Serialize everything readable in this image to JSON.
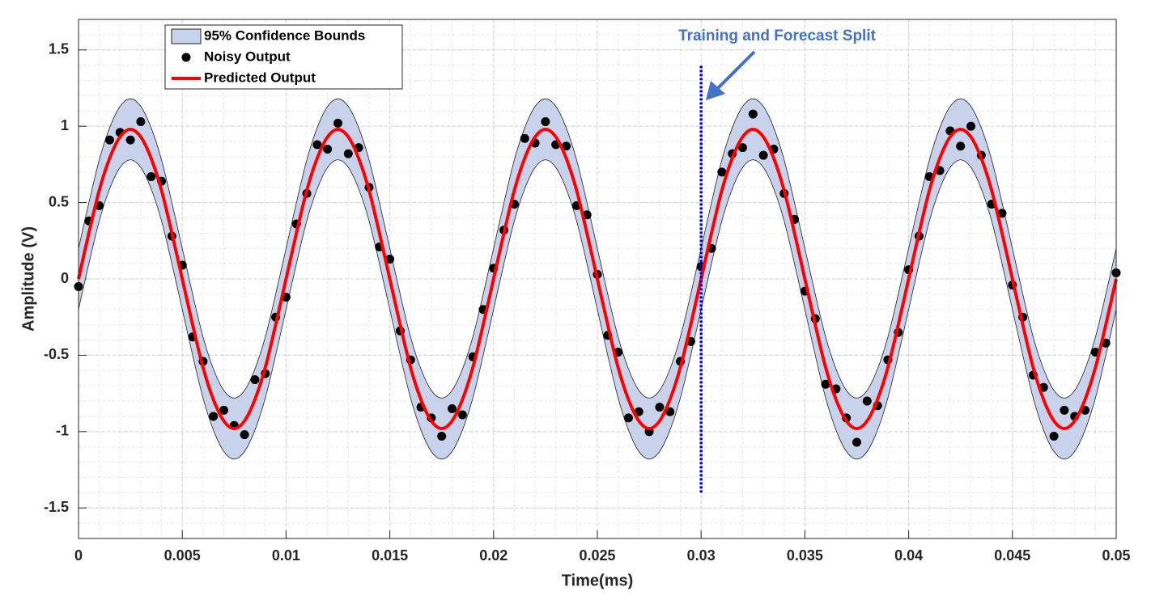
{
  "chart_data": {
    "type": "line",
    "xlabel": "Time(ms)",
    "ylabel": "Amplitude (V)",
    "x": [
      0,
      0.0005,
      0.001,
      0.0015,
      0.002,
      0.0025,
      0.003,
      0.0035,
      0.004,
      0.0045,
      0.005,
      0.0055,
      0.006,
      0.0065,
      0.007,
      0.0075,
      0.008,
      0.0085,
      0.009,
      0.0095,
      0.01,
      0.0105,
      0.011,
      0.0115,
      0.012,
      0.0125,
      0.013,
      0.0135,
      0.014,
      0.0145,
      0.015,
      0.0155,
      0.016,
      0.0165,
      0.017,
      0.0175,
      0.018,
      0.0185,
      0.019,
      0.0195,
      0.02,
      0.0205,
      0.021,
      0.0215,
      0.022,
      0.0225,
      0.023,
      0.0235,
      0.024,
      0.0245,
      0.025,
      0.0255,
      0.026,
      0.0265,
      0.027,
      0.0275,
      0.028,
      0.0285,
      0.029,
      0.0295,
      0.03,
      0.0305,
      0.031,
      0.0315,
      0.032,
      0.0325,
      0.033,
      0.0335,
      0.034,
      0.0345,
      0.035,
      0.0355,
      0.036,
      0.0365,
      0.037,
      0.0375,
      0.038,
      0.0385,
      0.039,
      0.0395,
      0.04,
      0.0405,
      0.041,
      0.0415,
      0.042,
      0.0425,
      0.043,
      0.0435,
      0.044,
      0.0445,
      0.045,
      0.0455,
      0.046,
      0.0465,
      0.047,
      0.0475,
      0.048,
      0.0485,
      0.049,
      0.0495,
      0.05
    ],
    "series": [
      {
        "name": "95% Confidence Bounds",
        "kind": "band",
        "color": "#c8d2ea",
        "upper": [
          0.2,
          0.5,
          0.78,
          0.99,
          1.13,
          1.18,
          1.13,
          0.99,
          0.78,
          0.5,
          0.2,
          -0.1,
          -0.38,
          -0.59,
          -0.73,
          -0.78,
          -0.73,
          -0.59,
          -0.38,
          -0.1,
          0.2,
          0.5,
          0.78,
          0.99,
          1.13,
          1.18,
          1.13,
          0.99,
          0.78,
          0.5,
          0.2,
          -0.1,
          -0.38,
          -0.59,
          -0.73,
          -0.78,
          -0.73,
          -0.59,
          -0.38,
          -0.1,
          0.2,
          0.5,
          0.78,
          0.99,
          1.13,
          1.18,
          1.13,
          0.99,
          0.78,
          0.5,
          0.2,
          -0.1,
          -0.38,
          -0.59,
          -0.73,
          -0.78,
          -0.73,
          -0.59,
          -0.38,
          -0.1,
          0.2,
          0.5,
          0.78,
          0.99,
          1.13,
          1.18,
          1.13,
          0.99,
          0.78,
          0.5,
          0.2,
          -0.1,
          -0.38,
          -0.59,
          -0.73,
          -0.78,
          -0.73,
          -0.59,
          -0.38,
          -0.1,
          0.2,
          0.5,
          0.78,
          0.99,
          1.13,
          1.18,
          1.13,
          0.99,
          0.78,
          0.5,
          0.2,
          -0.1,
          -0.38,
          -0.59,
          -0.73,
          -0.78,
          -0.73,
          -0.59,
          -0.38,
          -0.1,
          0.2
        ],
        "lower": [
          -0.2,
          0.1,
          0.38,
          0.59,
          0.73,
          0.78,
          0.73,
          0.59,
          0.38,
          0.1,
          -0.2,
          -0.5,
          -0.78,
          -0.99,
          -1.13,
          -1.18,
          -1.13,
          -0.99,
          -0.78,
          -0.5,
          -0.2,
          0.1,
          0.38,
          0.59,
          0.73,
          0.78,
          0.73,
          0.59,
          0.38,
          0.1,
          -0.2,
          -0.5,
          -0.78,
          -0.99,
          -1.13,
          -1.18,
          -1.13,
          -0.99,
          -0.78,
          -0.5,
          -0.2,
          0.1,
          0.38,
          0.59,
          0.73,
          0.78,
          0.73,
          0.59,
          0.38,
          0.1,
          -0.2,
          -0.5,
          -0.78,
          -0.99,
          -1.13,
          -1.18,
          -1.13,
          -0.99,
          -0.78,
          -0.5,
          -0.2,
          0.1,
          0.38,
          0.59,
          0.73,
          0.78,
          0.73,
          0.59,
          0.38,
          0.1,
          -0.2,
          -0.5,
          -0.78,
          -0.99,
          -1.13,
          -1.18,
          -1.13,
          -0.99,
          -0.78,
          -0.5,
          -0.2,
          0.1,
          0.38,
          0.59,
          0.73,
          0.78,
          0.73,
          0.59,
          0.38,
          0.1,
          -0.2,
          -0.5,
          -0.78,
          -0.99,
          -1.13,
          -1.18,
          -1.13,
          -0.99,
          -0.78,
          -0.5,
          -0.2
        ]
      },
      {
        "name": "Noisy Output",
        "kind": "scatter",
        "color": "#000000",
        "values": [
          -0.05,
          0.38,
          0.48,
          0.91,
          0.96,
          0.91,
          1.03,
          0.67,
          0.64,
          0.28,
          0.09,
          -0.38,
          -0.54,
          -0.9,
          -0.86,
          -0.96,
          -1.02,
          -0.66,
          -0.62,
          -0.25,
          -0.12,
          0.36,
          0.56,
          0.88,
          0.85,
          1.02,
          0.82,
          0.86,
          0.6,
          0.21,
          0.13,
          -0.34,
          -0.53,
          -0.84,
          -0.91,
          -1.03,
          -0.85,
          -0.89,
          -0.51,
          -0.2,
          0.07,
          0.32,
          0.49,
          0.92,
          0.89,
          1.03,
          0.88,
          0.87,
          0.48,
          0.42,
          0.03,
          -0.37,
          -0.48,
          -0.91,
          -0.87,
          -1.0,
          -0.84,
          -0.87,
          -0.54,
          -0.41,
          0.08,
          0.2,
          0.7,
          0.82,
          0.86,
          1.08,
          0.81,
          0.85,
          0.56,
          0.39,
          -0.08,
          -0.26,
          -0.69,
          -0.72,
          -0.91,
          -1.07,
          -0.8,
          -0.83,
          -0.53,
          -0.35,
          0.06,
          0.28,
          0.67,
          0.71,
          0.97,
          0.87,
          1.0,
          0.81,
          0.49,
          0.43,
          -0.04,
          -0.25,
          -0.63,
          -0.71,
          -1.03,
          -0.86,
          -0.9,
          -0.86,
          -0.48,
          -0.42,
          0.04
        ]
      },
      {
        "name": "Predicted Output",
        "kind": "line",
        "color": "#ff0000",
        "values": [
          0,
          0.3,
          0.58,
          0.79,
          0.93,
          0.98,
          0.93,
          0.79,
          0.58,
          0.3,
          0,
          -0.3,
          -0.58,
          -0.79,
          -0.93,
          -0.98,
          -0.93,
          -0.79,
          -0.58,
          -0.3,
          0,
          0.3,
          0.58,
          0.79,
          0.93,
          0.98,
          0.93,
          0.79,
          0.58,
          0.3,
          0,
          -0.3,
          -0.58,
          -0.79,
          -0.93,
          -0.98,
          -0.93,
          -0.79,
          -0.58,
          -0.3,
          0,
          0.3,
          0.58,
          0.79,
          0.93,
          0.98,
          0.93,
          0.79,
          0.58,
          0.3,
          0,
          -0.3,
          -0.58,
          -0.79,
          -0.93,
          -0.98,
          -0.93,
          -0.79,
          -0.58,
          -0.3,
          0,
          0.3,
          0.58,
          0.79,
          0.93,
          0.98,
          0.93,
          0.79,
          0.58,
          0.3,
          0,
          -0.3,
          -0.58,
          -0.79,
          -0.93,
          -0.98,
          -0.93,
          -0.79,
          -0.58,
          -0.3,
          0,
          0.3,
          0.58,
          0.79,
          0.93,
          0.98,
          0.93,
          0.79,
          0.58,
          0.3,
          0,
          -0.3,
          -0.58,
          -0.79,
          -0.93,
          -0.98,
          -0.93,
          -0.79,
          -0.58,
          -0.3,
          0
        ]
      }
    ],
    "xlim": [
      0,
      0.05
    ],
    "xticks": [
      0,
      0.005,
      0.01,
      0.015,
      0.02,
      0.025,
      0.03,
      0.035,
      0.04,
      0.045,
      0.05
    ],
    "ylim": [
      -1.7,
      1.7
    ],
    "yticks": [
      -1.5,
      -1,
      -0.5,
      0,
      0.5,
      1,
      1.5
    ],
    "grid": true,
    "minor_grid": true,
    "legend": "upper left",
    "annotation": {
      "text": "Training and Forecast Split",
      "x": 0.03,
      "y_range": [
        -1.4,
        1.4
      ],
      "color": "#0000ee",
      "text_color": "#4472c4"
    }
  }
}
